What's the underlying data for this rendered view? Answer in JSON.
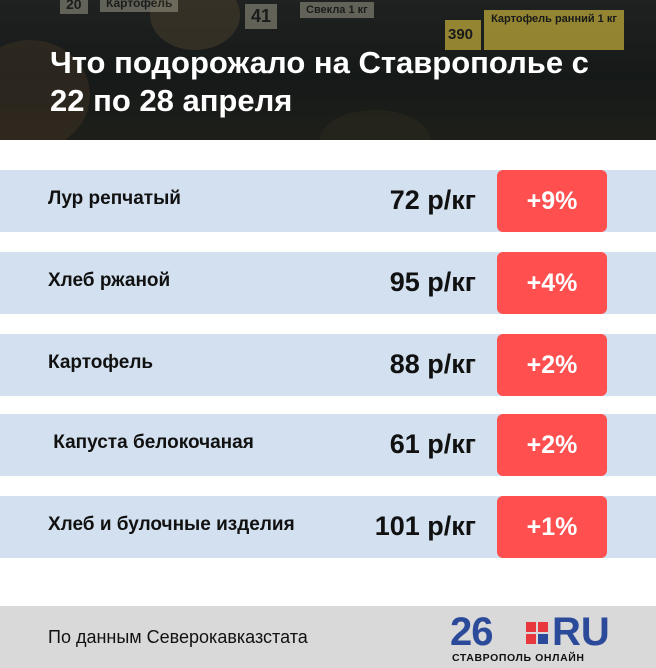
{
  "header": {
    "title": "Что подорожало на Ставрополье с 22 по 28 апреля",
    "bg_tags": [
      "20",
      "Картофель",
      "41",
      "Свекла 1 кг",
      "390",
      "Картофель ранний 1 кг"
    ]
  },
  "rows": [
    {
      "name": "Лур репчатый",
      "price": "72 р/кг",
      "change": "+9%"
    },
    {
      "name": "Хлеб ржаной",
      "price": "95 р/кг",
      "change": "+4%"
    },
    {
      "name": "Картофель",
      "price": "88 р/кг",
      "change": "+2%"
    },
    {
      "name": " Капуста белокочаная",
      "price": "61 р/кг",
      "change": "+2%"
    },
    {
      "name": "Хлеб и булочные изделия",
      "price": "101 р/кг",
      "change": "+1%"
    }
  ],
  "footer": {
    "source": "По данным Северокавказстата",
    "logo_number": "26",
    "logo_domain": "RU",
    "logo_subtitle": "СТАВРОПОЛЬ ОНЛАЙН"
  },
  "colors": {
    "row_bg": "#d2e0ef",
    "badge": "#ff4f4f",
    "footer_bg": "#d9d9d9",
    "logo_blue": "#2c4a9a",
    "logo_red": "#e8373d"
  }
}
